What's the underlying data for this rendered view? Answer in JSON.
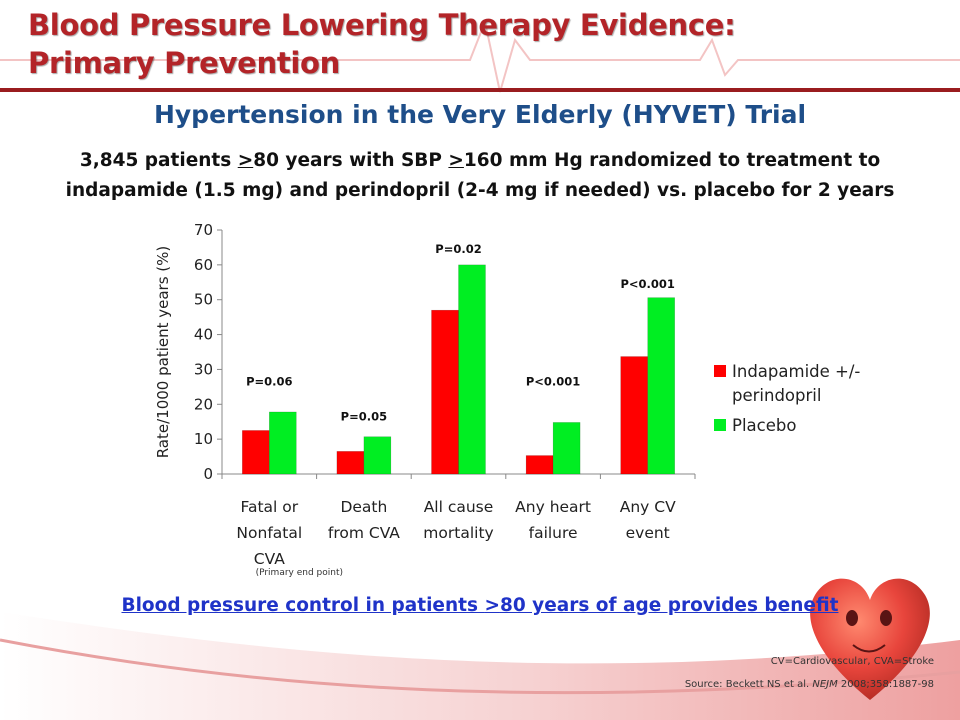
{
  "slide": {
    "title_line1": "Blood Pressure Lowering Therapy Evidence:",
    "title_line2": "Primary Prevention",
    "subtitle": "Hypertension in the Very Elderly (HYVET) Trial",
    "description": {
      "l1_a": "3,845 patients ",
      "l1_b": ">",
      "l1_c": "80 years with SBP ",
      "l1_d": ">",
      "l1_e": "160 mm Hg randomized to treatment to",
      "l2": "indapamide (1.5 mg) and perindopril (2-4 mg if needed) vs. placebo for 2 years"
    },
    "conclusion": {
      "a": "Blood pressure control in patients ",
      "b": ">",
      "c": "80 years of age provides benefit"
    },
    "footnote": "CV=Cardiovascular, CVA=Stroke",
    "source": {
      "prefix": "Source: Beckett NS et al. ",
      "journal": "NEJM",
      "suffix": " 2008;358:1887-98"
    },
    "colors": {
      "title": "#b32428",
      "subtitle": "#1e4e89",
      "conclusion": "#1f33c8",
      "heart": "#e8453c"
    }
  },
  "chart_data": {
    "type": "bar",
    "ylabel": "Rate/1000 patient years (%)",
    "ylim": [
      0,
      70
    ],
    "yticks": [
      0,
      10,
      20,
      30,
      40,
      50,
      60,
      70
    ],
    "grid": false,
    "legend_position": "right",
    "categories": [
      [
        "Fatal or",
        "Nonfatal",
        "CVA"
      ],
      [
        "Death",
        "from CVA"
      ],
      [
        "All cause",
        "mortality"
      ],
      [
        "Any heart",
        "failure"
      ],
      [
        "Any CV",
        "event"
      ]
    ],
    "series": [
      {
        "name": [
          "Indapamide +/-",
          "perindopril"
        ],
        "color": "#ff0000",
        "values": [
          12.5,
          6.5,
          47,
          5.3,
          33.7
        ]
      },
      {
        "name": [
          "Placebo"
        ],
        "color": "#00ee22",
        "values": [
          17.8,
          10.7,
          60,
          14.8,
          50.6
        ]
      }
    ],
    "annotations": [
      {
        "text": "P=0.06",
        "category_index": 0,
        "y": 26.5
      },
      {
        "text": "P=0.05",
        "category_index": 1,
        "y": 16.5
      },
      {
        "text": "P=0.02",
        "category_index": 2,
        "y": 64.5
      },
      {
        "text": "P<0.001",
        "category_index": 3,
        "y": 26.5
      },
      {
        "text": "P<0.001",
        "category_index": 4,
        "y": 54.5
      }
    ],
    "category_note": {
      "category_index": 0,
      "text": "(Primary end point)"
    }
  }
}
